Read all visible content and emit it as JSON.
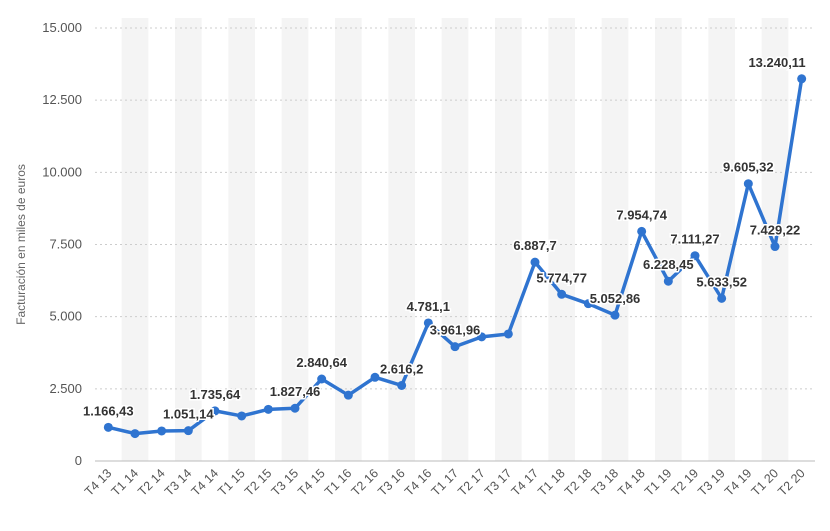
{
  "chart_data": {
    "type": "line",
    "title": "",
    "xlabel": "",
    "ylabel": "Facturación en miles de euros",
    "ylim": [
      0,
      15000
    ],
    "yticks": [
      0,
      2500,
      5000,
      7500,
      10000,
      12500,
      15000
    ],
    "ytick_labels": [
      "0",
      "2.500",
      "5.000",
      "7.500",
      "10.000",
      "12.500",
      "15.000"
    ],
    "grid": "horizontal dashed",
    "legend": "none",
    "colors": {
      "line": "#2f74d0",
      "band": "#f4f4f4",
      "grid": "#cccccc"
    },
    "categories": [
      "T4 13",
      "T1 14",
      "T2 14",
      "T3 14",
      "T4 14",
      "T1 15",
      "T2 15",
      "T3 15",
      "T4 15",
      "T1 16",
      "T2 16",
      "T3 16",
      "T4 16",
      "T1 17",
      "T2 17",
      "T3 17",
      "T4 17",
      "T1 18",
      "T2 18",
      "T3 18",
      "T4 18",
      "T1 19",
      "T2 19",
      "T3 19",
      "T4 19",
      "T1 20",
      "T2 20"
    ],
    "values": [
      1166.43,
      950,
      1040,
      1051.14,
      1735.64,
      1560,
      1790,
      1827.46,
      2840.64,
      2280,
      2900,
      2616.2,
      4781.1,
      3961.96,
      4300,
      4400,
      6887.7,
      5774.77,
      5450,
      5052.86,
      7954.74,
      6228.45,
      7111.27,
      5633.52,
      9605.32,
      7429.22,
      13240.11
    ],
    "data_labels": [
      "1.166,43",
      "",
      "",
      "1.051,14",
      "1.735,64",
      "",
      "",
      "1.827,46",
      "2.840,64",
      "",
      "",
      "2.616,2",
      "4.781,1",
      "3.961,96",
      "",
      "",
      "6.887,7",
      "5.774,77",
      "",
      "5.052,86",
      "7.954,74",
      "6.228,45",
      "7.111,27",
      "5.633,52",
      "9.605,32",
      "7.429,22",
      "13.240,11"
    ]
  }
}
